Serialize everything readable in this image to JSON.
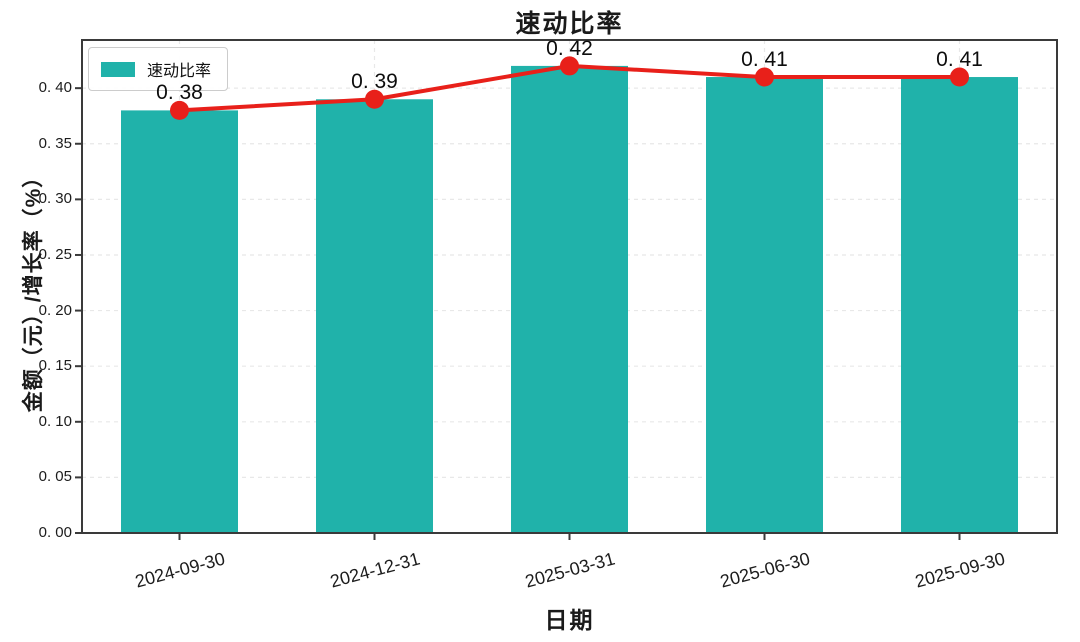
{
  "chart_data": {
    "type": "bar",
    "title": "速动比率",
    "xlabel": "日期",
    "ylabel": "金额（元）/增长率（%）",
    "categories": [
      "2024-09-30",
      "2024-12-31",
      "2025-03-31",
      "2025-06-30",
      "2025-09-30"
    ],
    "values": [
      0.38,
      0.39,
      0.42,
      0.41,
      0.41
    ],
    "value_labels": [
      "0. 38",
      "0. 39",
      "0. 42",
      "0. 41",
      "0. 41"
    ],
    "line_overlay": {
      "values": [
        0.38,
        0.39,
        0.42,
        0.41,
        0.41
      ],
      "marker": "circle"
    },
    "yticks": [
      0.0,
      0.05,
      0.1,
      0.15,
      0.2,
      0.25,
      0.3,
      0.35,
      0.4
    ],
    "ytick_labels": [
      "0. 00",
      "0. 05",
      "0. 10",
      "0. 15",
      "0. 20",
      "0. 25",
      "0. 30",
      "0. 35",
      "0. 40"
    ],
    "ylim": [
      0,
      0.4433
    ],
    "grid": "dashed-both-axes",
    "legend": {
      "label": "速动比率",
      "position": "top-left"
    },
    "colors": {
      "bar": "#20b2aa",
      "line": "#e8201a",
      "marker": "#e8201a",
      "frame": "#3a3a3a",
      "grid": "#e8e8e8",
      "text": "#111111"
    }
  }
}
